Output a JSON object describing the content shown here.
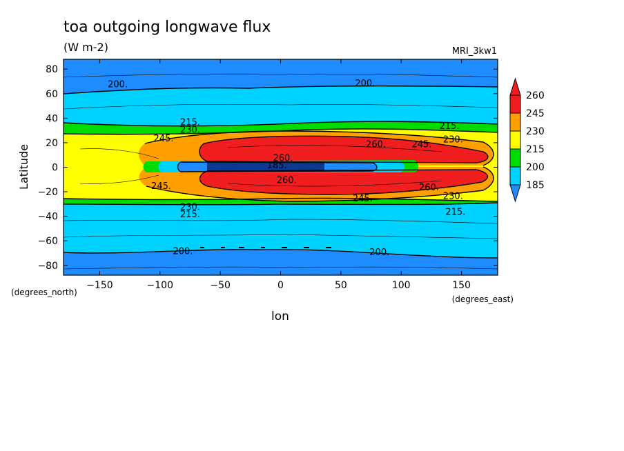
{
  "chart_data": {
    "type": "heatmap",
    "title": "toa outgoing longwave flux",
    "subtitle": "(W m-2)",
    "model_label": "MRI_3kw1",
    "xlabel": "lon",
    "ylabel": "Latitude",
    "x_unit": "(degrees_east)",
    "y_unit": "(degrees_north)",
    "xlim": [
      -180,
      180
    ],
    "ylim": [
      -88,
      88
    ],
    "x_ticks": [
      -150,
      -100,
      -50,
      0,
      50,
      100,
      150
    ],
    "y_ticks": [
      80,
      60,
      40,
      20,
      0,
      -20,
      -40,
      -60,
      -80
    ],
    "colorbar": {
      "levels": [
        185,
        200,
        215,
        230,
        245,
        260
      ],
      "colors": [
        "#1e8cff",
        "#00d2ff",
        "#00dc00",
        "#ffff00",
        "#ffa000",
        "#f01e1e"
      ],
      "extend": "both"
    },
    "contour_labels": [
      {
        "text": "200.",
        "x": -135,
        "y": 68
      },
      {
        "text": "200.",
        "x": 70,
        "y": 69
      },
      {
        "text": "215.",
        "x": -75,
        "y": 37
      },
      {
        "text": "230.",
        "x": -75,
        "y": 31
      },
      {
        "text": "215.",
        "x": 140,
        "y": 34
      },
      {
        "text": "245.",
        "x": -97,
        "y": 24
      },
      {
        "text": "230.",
        "x": 143,
        "y": 23
      },
      {
        "text": "245.",
        "x": 117,
        "y": 19
      },
      {
        "text": "260.",
        "x": 79,
        "y": 19
      },
      {
        "text": "260.",
        "x": 2,
        "y": 8
      },
      {
        "text": "185.",
        "x": -3,
        "y": 2
      },
      {
        "text": "245.",
        "x": -99,
        "y": -15
      },
      {
        "text": "260.",
        "x": 5,
        "y": -10
      },
      {
        "text": "260.",
        "x": 123,
        "y": -16
      },
      {
        "text": "230.",
        "x": 143,
        "y": -23
      },
      {
        "text": "245.",
        "x": 68,
        "y": -25
      },
      {
        "text": "230.",
        "x": -75,
        "y": -32
      },
      {
        "text": "215.",
        "x": -75,
        "y": -38
      },
      {
        "text": "215.",
        "x": 145,
        "y": -36
      },
      {
        "text": "200.",
        "x": -81,
        "y": -68
      },
      {
        "text": "200.",
        "x": 82,
        "y": -69
      }
    ]
  }
}
